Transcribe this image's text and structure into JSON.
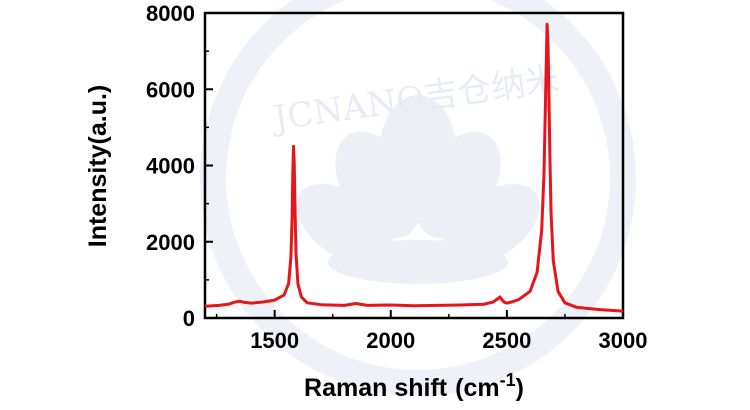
{
  "watermark": {
    "text": "JCNANO吉仓纳米"
  },
  "chart_data": {
    "type": "line",
    "title": "",
    "xlabel": "Raman shift",
    "xlabel_unit": "(cm",
    "xlabel_sup": "-1",
    "xlabel_close": ")",
    "ylabel": "Intensity(a.u.)",
    "xlim": [
      1200,
      3000
    ],
    "ylim": [
      0,
      8000
    ],
    "xticks": [
      1500,
      2000,
      2500,
      3000
    ],
    "yticks": [
      0,
      2000,
      4000,
      6000,
      8000
    ],
    "grid": false,
    "legend": "none",
    "color": "#e8141b",
    "series": [
      {
        "x": [
          1200,
          1260,
          1300,
          1330,
          1350,
          1370,
          1400,
          1450,
          1500,
          1540,
          1560,
          1570,
          1575,
          1578,
          1581,
          1584,
          1587,
          1592,
          1600,
          1615,
          1640,
          1700,
          1800,
          1850,
          1900,
          2000,
          2100,
          2200,
          2300,
          2400,
          2440,
          2460,
          2470,
          2480,
          2490,
          2500,
          2520,
          2550,
          2600,
          2630,
          2650,
          2660,
          2668,
          2673,
          2677,
          2680,
          2685,
          2690,
          2700,
          2720,
          2750,
          2800,
          2850,
          2900,
          2950,
          3000
        ],
        "y": [
          310,
          330,
          360,
          420,
          440,
          410,
          390,
          420,
          470,
          600,
          900,
          1600,
          2600,
          3800,
          4500,
          4100,
          3000,
          1700,
          900,
          550,
          400,
          350,
          330,
          380,
          330,
          340,
          320,
          330,
          340,
          360,
          420,
          500,
          550,
          470,
          410,
          390,
          420,
          480,
          700,
          1200,
          2300,
          3800,
          6200,
          7700,
          7200,
          6200,
          4400,
          2800,
          1500,
          700,
          400,
          280,
          250,
          220,
          200,
          180
        ]
      }
    ]
  }
}
